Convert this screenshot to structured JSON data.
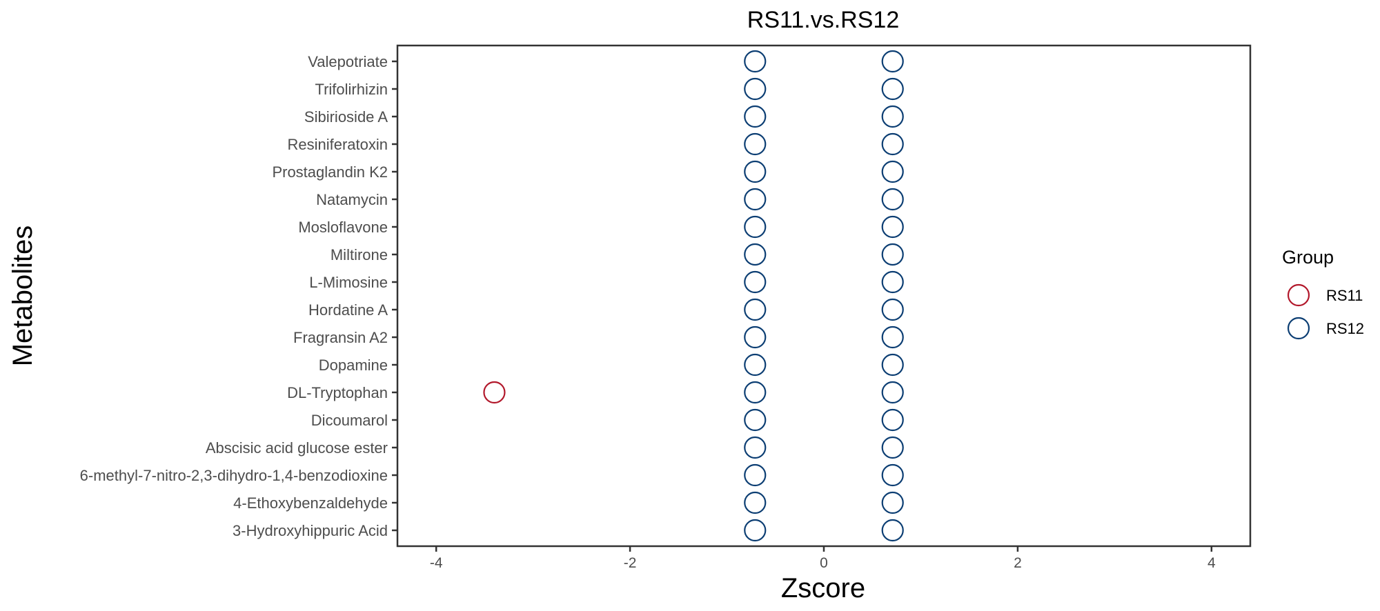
{
  "chart_data": {
    "type": "scatter",
    "title": "RS11.vs.RS12",
    "xlabel": "Zscore",
    "ylabel": "Metabolites",
    "xlim": [
      -4.4,
      4.4
    ],
    "xticks": [
      -4,
      -2,
      0,
      2,
      4
    ],
    "grid": false,
    "legend": {
      "title": "Group",
      "placement": "right",
      "entries": [
        {
          "name": "RS11",
          "color": "#B2182B"
        },
        {
          "name": "RS12",
          "color": "#0C3E73"
        }
      ]
    },
    "categories": [
      "3-Hydroxyhippuric Acid",
      "4-Ethoxybenzaldehyde",
      "6-methyl-7-nitro-2,3-dihydro-1,4-benzodioxine",
      "Abscisic acid glucose ester",
      "Dicoumarol",
      "DL-Tryptophan",
      "Dopamine",
      "Fragransin A2",
      "Hordatine A",
      "L-Mimosine",
      "Miltirone",
      "Mosloflavone",
      "Natamycin",
      "Prostaglandin K2",
      "Resiniferatoxin",
      "Sibirioside A",
      "Trifolirhizin",
      "Valepotriate"
    ],
    "points": [
      {
        "y": "DL-Tryptophan",
        "x": -3.4,
        "group": "RS11"
      },
      {
        "y": "3-Hydroxyhippuric Acid",
        "x": -0.71,
        "group": "RS12"
      },
      {
        "y": "3-Hydroxyhippuric Acid",
        "x": 0.71,
        "group": "RS12"
      },
      {
        "y": "4-Ethoxybenzaldehyde",
        "x": -0.71,
        "group": "RS12"
      },
      {
        "y": "4-Ethoxybenzaldehyde",
        "x": 0.71,
        "group": "RS12"
      },
      {
        "y": "6-methyl-7-nitro-2,3-dihydro-1,4-benzodioxine",
        "x": -0.71,
        "group": "RS12"
      },
      {
        "y": "6-methyl-7-nitro-2,3-dihydro-1,4-benzodioxine",
        "x": 0.71,
        "group": "RS12"
      },
      {
        "y": "Abscisic acid glucose ester",
        "x": -0.71,
        "group": "RS12"
      },
      {
        "y": "Abscisic acid glucose ester",
        "x": 0.71,
        "group": "RS12"
      },
      {
        "y": "Dicoumarol",
        "x": -0.71,
        "group": "RS12"
      },
      {
        "y": "Dicoumarol",
        "x": 0.71,
        "group": "RS12"
      },
      {
        "y": "DL-Tryptophan",
        "x": -0.71,
        "group": "RS12"
      },
      {
        "y": "DL-Tryptophan",
        "x": 0.71,
        "group": "RS12"
      },
      {
        "y": "Dopamine",
        "x": -0.71,
        "group": "RS12"
      },
      {
        "y": "Dopamine",
        "x": 0.71,
        "group": "RS12"
      },
      {
        "y": "Fragransin A2",
        "x": -0.71,
        "group": "RS12"
      },
      {
        "y": "Fragransin A2",
        "x": 0.71,
        "group": "RS12"
      },
      {
        "y": "Hordatine A",
        "x": -0.71,
        "group": "RS12"
      },
      {
        "y": "Hordatine A",
        "x": 0.71,
        "group": "RS12"
      },
      {
        "y": "L-Mimosine",
        "x": -0.71,
        "group": "RS12"
      },
      {
        "y": "L-Mimosine",
        "x": 0.71,
        "group": "RS12"
      },
      {
        "y": "Miltirone",
        "x": -0.71,
        "group": "RS12"
      },
      {
        "y": "Miltirone",
        "x": 0.71,
        "group": "RS12"
      },
      {
        "y": "Mosloflavone",
        "x": -0.71,
        "group": "RS12"
      },
      {
        "y": "Mosloflavone",
        "x": 0.71,
        "group": "RS12"
      },
      {
        "y": "Natamycin",
        "x": -0.71,
        "group": "RS12"
      },
      {
        "y": "Natamycin",
        "x": 0.71,
        "group": "RS12"
      },
      {
        "y": "Prostaglandin K2",
        "x": -0.71,
        "group": "RS12"
      },
      {
        "y": "Prostaglandin K2",
        "x": 0.71,
        "group": "RS12"
      },
      {
        "y": "Resiniferatoxin",
        "x": -0.71,
        "group": "RS12"
      },
      {
        "y": "Resiniferatoxin",
        "x": 0.71,
        "group": "RS12"
      },
      {
        "y": "Sibirioside A",
        "x": -0.71,
        "group": "RS12"
      },
      {
        "y": "Sibirioside A",
        "x": 0.71,
        "group": "RS12"
      },
      {
        "y": "Trifolirhizin",
        "x": -0.71,
        "group": "RS12"
      },
      {
        "y": "Trifolirhizin",
        "x": 0.71,
        "group": "RS12"
      },
      {
        "y": "Valepotriate",
        "x": -0.71,
        "group": "RS12"
      },
      {
        "y": "Valepotriate",
        "x": 0.71,
        "group": "RS12"
      }
    ]
  }
}
